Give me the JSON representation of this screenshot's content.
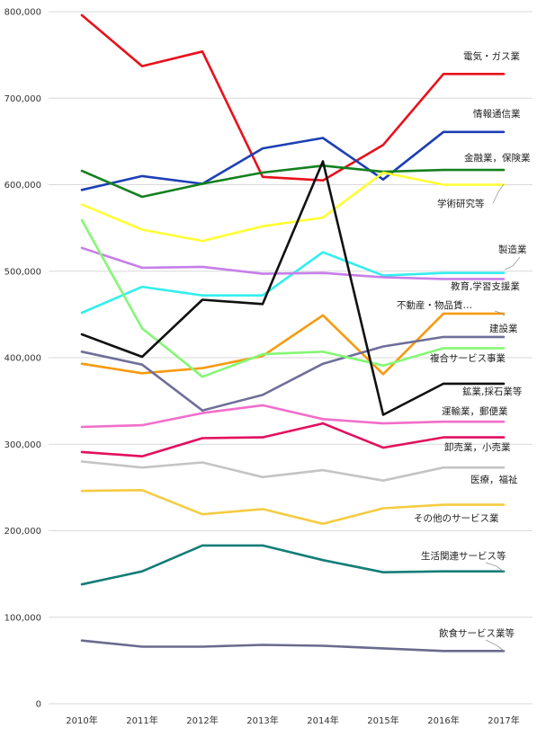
{
  "chart_data": {
    "type": "line",
    "title": "",
    "xlabel": "",
    "ylabel": "",
    "categories": [
      "2010年",
      "2011年",
      "2012年",
      "2013年",
      "2014年",
      "2015年",
      "2016年",
      "2017年"
    ],
    "ylim": [
      0,
      800000
    ],
    "yticks": [
      0,
      100000,
      200000,
      300000,
      400000,
      500000,
      600000,
      700000,
      800000
    ],
    "ytick_labels": [
      "0",
      "100,000",
      "200,000",
      "300,000",
      "400,000",
      "500,000",
      "600,000",
      "700,000",
      "800,000"
    ],
    "grid": true,
    "series": [
      {
        "name": "電気・ガス業",
        "color": "#e8111b",
        "values": [
          796000,
          737000,
          754000,
          609000,
          605000,
          646000,
          728000,
          728000
        ]
      },
      {
        "name": "情報通信業",
        "color": "#1c3fb5",
        "values": [
          594000,
          610000,
          601000,
          642000,
          654000,
          606000,
          661000,
          661000
        ]
      },
      {
        "name": "金融業，保険業",
        "color": "#15801f",
        "values": [
          616000,
          586000,
          601000,
          614000,
          622000,
          615000,
          617000,
          617000
        ]
      },
      {
        "name": "学術研究等",
        "color": "#ffff33",
        "values": [
          577000,
          548000,
          535000,
          552000,
          562000,
          614000,
          600000,
          600000
        ]
      },
      {
        "name": "製造業",
        "color": "#33eeee",
        "values": [
          452000,
          482000,
          472000,
          472000,
          522000,
          495000,
          498000,
          498000
        ]
      },
      {
        "name": "教育,学習支援業",
        "color": "#c77ee8",
        "values": [
          527000,
          504000,
          505000,
          497000,
          498000,
          493000,
          491000,
          491000
        ]
      },
      {
        "name": "不動産・物品賃…",
        "color": "#f79a0e",
        "values": [
          393000,
          382000,
          388000,
          402000,
          449000,
          381000,
          451000,
          451000
        ]
      },
      {
        "name": "建設業",
        "color": "#6f6f99",
        "values": [
          407000,
          392000,
          339000,
          357000,
          393000,
          413000,
          424000,
          424000
        ]
      },
      {
        "name": "複合サービス事業",
        "color": "#85f775",
        "values": [
          559000,
          434000,
          378000,
          404000,
          407000,
          391000,
          411000,
          411000
        ]
      },
      {
        "name": "鉱業,採石業等",
        "color": "#111111",
        "values": [
          427000,
          401000,
          467000,
          462000,
          627000,
          334000,
          370000,
          370000
        ]
      },
      {
        "name": "運輸業，郵便業",
        "color": "#f26ec9",
        "values": [
          320000,
          322000,
          336000,
          345000,
          329000,
          324000,
          326000,
          326000
        ]
      },
      {
        "name": "卸売業，小売業",
        "color": "#e30f5e",
        "values": [
          291000,
          286000,
          307000,
          308000,
          324000,
          296000,
          308000,
          308000
        ]
      },
      {
        "name": "医療，福祉",
        "color": "#c4c4c4",
        "values": [
          280000,
          273000,
          279000,
          262000,
          270000,
          258000,
          273000,
          273000
        ]
      },
      {
        "name": "その他のサービス業",
        "color": "#f4cc42",
        "values": [
          246000,
          247000,
          219000,
          225000,
          208000,
          226000,
          230000,
          230000
        ]
      },
      {
        "name": "生活関連サービス等",
        "color": "#137d78",
        "values": [
          138000,
          153000,
          183000,
          183000,
          166000,
          152000,
          153000,
          153000
        ]
      },
      {
        "name": "飲食サービス業等",
        "color": "#6a6a8e",
        "values": [
          73000,
          66000,
          66000,
          68000,
          67000,
          64000,
          61000,
          61000
        ]
      }
    ]
  }
}
